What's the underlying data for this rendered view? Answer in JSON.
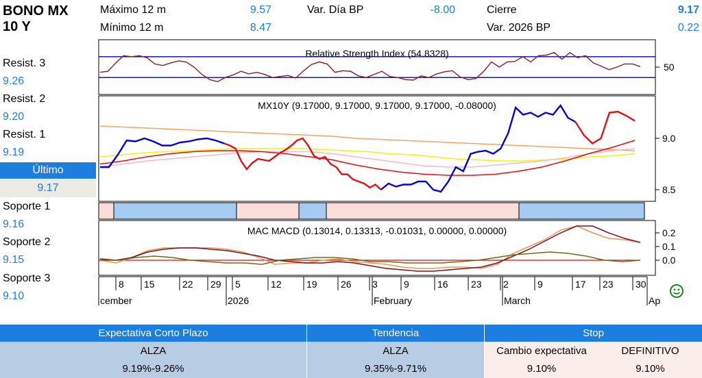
{
  "header": {
    "title_line1": "BONO MX",
    "title_line2": "10 Y",
    "max_label": "Máximo 12 m",
    "max_value": "9.57",
    "min_label": "Mínimo 12 m",
    "min_value": "8.47",
    "var_dia_label": "Var. Día BP",
    "var_dia_value": "-8.00",
    "cierre_label": "Cierre",
    "cierre_value": "9.17",
    "var_2026_label": "Var. 2026 BP",
    "var_2026_value": "0.22"
  },
  "levels": {
    "resist3_label": "Resist. 3",
    "resist3_value": "9.26",
    "resist2_label": "Resist. 2",
    "resist2_value": "9.20",
    "resist1_label": "Resist. 1",
    "resist1_value": "9.19",
    "ultimo_label": "Último",
    "ultimo_value": "9.17",
    "soporte1_label": "Soporte 1",
    "soporte1_value": "9.16",
    "soporte2_label": "Soporte 2",
    "soporte2_value": "9.15",
    "soporte3_label": "Soporte 3",
    "soporte3_value": "9.10"
  },
  "chart_data": [
    {
      "type": "line",
      "title": "Relative Strength Index (54.8328)",
      "yticks": [
        "50"
      ],
      "ylim": [
        0,
        100
      ],
      "bands": [
        70,
        30
      ],
      "colors": {
        "rsi": "#8b1a1a",
        "bands": "#0000c0"
      },
      "values": [
        40,
        42,
        58,
        72,
        70,
        72,
        68,
        56,
        53,
        58,
        62,
        60,
        50,
        36,
        26,
        22,
        30,
        35,
        42,
        37,
        40,
        36,
        30,
        32,
        34,
        29,
        43,
        55,
        60,
        56,
        40,
        43,
        42,
        33,
        30,
        36,
        42,
        32,
        30,
        26,
        25,
        33,
        30,
        37,
        41,
        43,
        31,
        26,
        28,
        42,
        60,
        50,
        60,
        61,
        70,
        60,
        72,
        73,
        78,
        65,
        78,
        68,
        72,
        58,
        52,
        45,
        50,
        56,
        56,
        51
      ]
    },
    {
      "type": "line",
      "title": "MX10Y (9.17000, 9.17000, 9.17000, 9.17000, -0.08000)",
      "yticks": [
        "9.0",
        "8.5"
      ],
      "ylim": [
        8.4,
        9.4
      ],
      "series": [
        {
          "color": "#0000e0",
          "values": [
            8.72,
            8.72,
            8.84,
            8.98,
            8.97,
            9.0,
            8.97,
            8.93,
            8.93,
            8.96,
            8.97,
            8.99,
            9.0,
            8.98,
            8.95
          ]
        },
        {
          "color": "#e01010",
          "values": [
            8.95,
            8.93,
            8.9,
            8.78,
            8.7,
            8.76,
            8.8,
            8.79,
            8.78,
            8.82,
            8.86,
            8.89,
            8.93,
            8.98,
            9.0,
            8.93,
            8.83,
            8.8,
            8.82,
            8.75,
            8.72,
            8.65,
            8.65,
            8.6,
            8.58,
            8.56,
            8.52,
            8.55,
            8.5
          ]
        },
        {
          "color": "#0000e0",
          "values": [
            8.5,
            8.56,
            8.53,
            8.55,
            8.55,
            8.58,
            8.58,
            8.5,
            8.48,
            8.58,
            8.72,
            8.68,
            8.85,
            8.87,
            8.88,
            8.85,
            8.9,
            9.05,
            9.3,
            9.23,
            9.25,
            9.21,
            9.25,
            9.23,
            9.32,
            9.2,
            9.16
          ]
        },
        {
          "color": "#e01010",
          "values": [
            9.16,
            9.03,
            8.95,
            9.0,
            9.25,
            9.26,
            9.22,
            9.17
          ]
        }
      ],
      "ma_series": [
        {
          "color": "#f4a460",
          "values": [
            9.12,
            9.11,
            9.1,
            9.09,
            9.08,
            9.07,
            9.06,
            9.05,
            9.04,
            9.03,
            9.02,
            9.0,
            8.99,
            8.98,
            8.97,
            8.96,
            8.95,
            8.94,
            8.93,
            8.92,
            8.91,
            8.9,
            8.89,
            8.88
          ]
        },
        {
          "color": "#f2f20a",
          "values": [
            8.82,
            8.84,
            8.86,
            8.87,
            8.88,
            8.89,
            8.9,
            8.9,
            8.9,
            8.9,
            8.89,
            8.88,
            8.87,
            8.85,
            8.84,
            8.82,
            8.8,
            8.79,
            8.78,
            8.78,
            8.79,
            8.8,
            8.82,
            8.83,
            8.85
          ]
        },
        {
          "color": "#f4b8c8",
          "values": [
            8.72,
            8.75,
            8.78,
            8.8,
            8.82,
            8.84,
            8.86,
            8.87,
            8.87,
            8.87,
            8.85,
            8.82,
            8.79,
            8.76,
            8.73,
            8.72,
            8.72,
            8.74,
            8.76,
            8.78,
            8.81,
            8.85,
            8.88,
            8.9
          ]
        },
        {
          "color": "#e01010",
          "values": [
            8.75,
            8.78,
            8.82,
            8.85,
            8.87,
            8.88,
            8.88,
            8.87,
            8.85,
            8.82,
            8.79,
            8.74,
            8.7,
            8.67,
            8.65,
            8.64,
            8.64,
            8.65,
            8.68,
            8.72,
            8.78,
            8.85,
            8.91,
            8.98
          ]
        }
      ]
    },
    {
      "type": "line",
      "title": "MAC MACD (0.13014, 0.13313, -0.01031, 0.00000, 0.00000)",
      "yticks": [
        "0.2",
        "0.1",
        "0.0"
      ],
      "ylim": [
        -0.1,
        0.28
      ],
      "series": [
        {
          "color": "#e8964e",
          "values": [
            0.0,
            -0.02,
            0.02,
            0.07,
            0.09,
            0.09,
            0.09,
            0.09,
            0.08,
            0.06,
            0.02,
            -0.03,
            -0.02,
            -0.02,
            0.0,
            0.01,
            -0.01,
            -0.02,
            -0.03,
            -0.05,
            -0.06,
            -0.06,
            -0.05,
            -0.05,
            -0.06,
            -0.03,
            0.05,
            0.1,
            0.15,
            0.22,
            0.25,
            0.2,
            0.16,
            0.15,
            0.13
          ]
        },
        {
          "color": "#7b1020",
          "values": [
            0.01,
            0.0,
            0.02,
            0.06,
            0.08,
            0.09,
            0.09,
            0.08,
            0.07,
            0.05,
            0.03,
            0.0,
            -0.01,
            -0.02,
            -0.02,
            -0.01,
            -0.02,
            -0.04,
            -0.06,
            -0.07,
            -0.08,
            -0.08,
            -0.07,
            -0.06,
            -0.05,
            -0.02,
            0.03,
            0.08,
            0.14,
            0.2,
            0.25,
            0.25,
            0.2,
            0.16,
            0.13
          ]
        },
        {
          "color": "#6b6b10",
          "values": [
            0.0,
            0.0,
            0.02,
            0.03,
            0.02,
            0.0,
            -0.01,
            -0.02,
            -0.02,
            -0.03,
            0.0,
            0.01,
            0.02,
            0.02,
            0.01,
            -0.01,
            -0.01,
            -0.02,
            -0.02,
            -0.02,
            -0.01,
            0.0,
            0.02,
            0.04,
            0.05,
            0.06,
            0.05,
            0.03,
            0.0,
            -0.01,
            0.0
          ]
        },
        {
          "color": "#d01010",
          "values": [
            0.0,
            0.0
          ]
        }
      ]
    }
  ],
  "trend_bar": {
    "colors": {
      "up": "#a6cbf2",
      "down": "#fadcd8"
    },
    "segments": [
      "down",
      "up",
      "down",
      "up",
      "down",
      "up"
    ]
  },
  "x_axis": {
    "day_labels": [
      "8",
      "15",
      "22",
      "29",
      "5",
      "12",
      "19",
      "26",
      "3",
      "9",
      "16",
      "23",
      "2",
      "9",
      "17",
      "23",
      "30"
    ],
    "month_labels": [
      "cember",
      "2026",
      "February",
      "March",
      "Ap"
    ]
  },
  "table": {
    "h1": "Expectativa Corto Plazo",
    "h2": "Tendencia",
    "h3": "Stop",
    "c1_r1": "ALZA",
    "c1_r2": "9.19%-9.26%",
    "c2_r1": "ALZA",
    "c2_r2": "9.35%-9.71%",
    "c3a_r1": "Cambio expectativa",
    "c3a_r2": "9.10%",
    "c3b_r1": "DEFINITIVO",
    "c3b_r2": "9.10%"
  },
  "colors": {
    "accent": "#1e7ee0",
    "table_blue": "#b8cce4",
    "table_pink": "#fbeeea"
  }
}
